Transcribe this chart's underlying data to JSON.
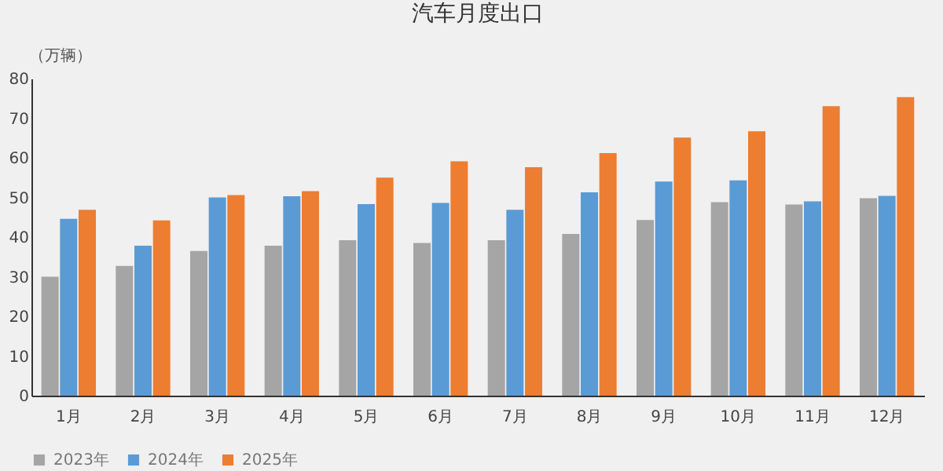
{
  "chart_data": {
    "type": "bar",
    "title": "汽车月度出口",
    "ylabel": "（万辆）",
    "categories": [
      "1月",
      "2月",
      "3月",
      "4月",
      "5月",
      "6月",
      "7月",
      "8月",
      "9月",
      "10月",
      "11月",
      "12月"
    ],
    "series": [
      {
        "name": "2023年",
        "color": "#a5a5a5",
        "values": [
          30.0,
          32.7,
          36.5,
          37.8,
          39.2,
          38.5,
          39.2,
          40.8,
          44.3,
          48.8,
          48.2,
          49.8
        ]
      },
      {
        "name": "2024年",
        "color": "#5b9bd5",
        "values": [
          44.6,
          37.8,
          50.0,
          50.3,
          48.3,
          48.6,
          46.9,
          51.3,
          54.0,
          54.3,
          49.0,
          50.4
        ]
      },
      {
        "name": "2025年",
        "color": "#ed7d31",
        "values": [
          46.9,
          44.2,
          50.6,
          51.6,
          55.0,
          59.1,
          57.6,
          61.2,
          65.1,
          66.7,
          73.0,
          75.3
        ]
      }
    ],
    "ylim": [
      0,
      80
    ],
    "yticks": [
      0,
      10,
      20,
      30,
      40,
      50,
      60,
      70,
      80
    ],
    "grid": false,
    "legend": "bottom"
  }
}
